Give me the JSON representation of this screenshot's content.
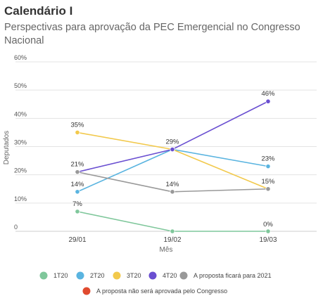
{
  "title": "Calendário I",
  "subtitle": "Perspectivas para aprovação da PEC Emergencial no Congresso Nacional",
  "chart_data": {
    "type": "line",
    "title": "Calendário I",
    "subtitle": "Perspectivas para aprovação da PEC Emergencial no Congresso Nacional",
    "xlabel": "Mês",
    "ylabel": "Deputados",
    "categories": [
      "29/01",
      "19/02",
      "19/03"
    ],
    "ylim": [
      0,
      60
    ],
    "yticks": [
      "0",
      "10%",
      "20%",
      "30%",
      "40%",
      "50%",
      "60%"
    ],
    "grid": true,
    "legend_position": "bottom",
    "series": [
      {
        "name": "1T20",
        "color": "#7fc79b",
        "values": [
          7,
          0,
          0
        ],
        "labels": [
          "7%",
          "",
          "0%"
        ]
      },
      {
        "name": "2T20",
        "color": "#5ab4e0",
        "values": [
          14,
          29,
          23
        ],
        "labels": [
          "14%",
          "",
          "23%"
        ]
      },
      {
        "name": "3T20",
        "color": "#f2c94c",
        "values": [
          35,
          29,
          15
        ],
        "labels": [
          "35%",
          "",
          "15%"
        ]
      },
      {
        "name": "4T20",
        "color": "#6a4fd1",
        "values": [
          21,
          29,
          46
        ],
        "labels": [
          "21%",
          "29%",
          "46%"
        ]
      },
      {
        "name": "A proposta ficará para 2021",
        "color": "#999999",
        "values": [
          21,
          14,
          15
        ],
        "labels": [
          "",
          "14%",
          ""
        ]
      },
      {
        "name": "A proposta não será aprovada pelo Congresso",
        "color": "#e04a2f",
        "values": [
          null,
          null,
          null
        ],
        "labels": [
          "",
          "",
          ""
        ]
      }
    ]
  }
}
